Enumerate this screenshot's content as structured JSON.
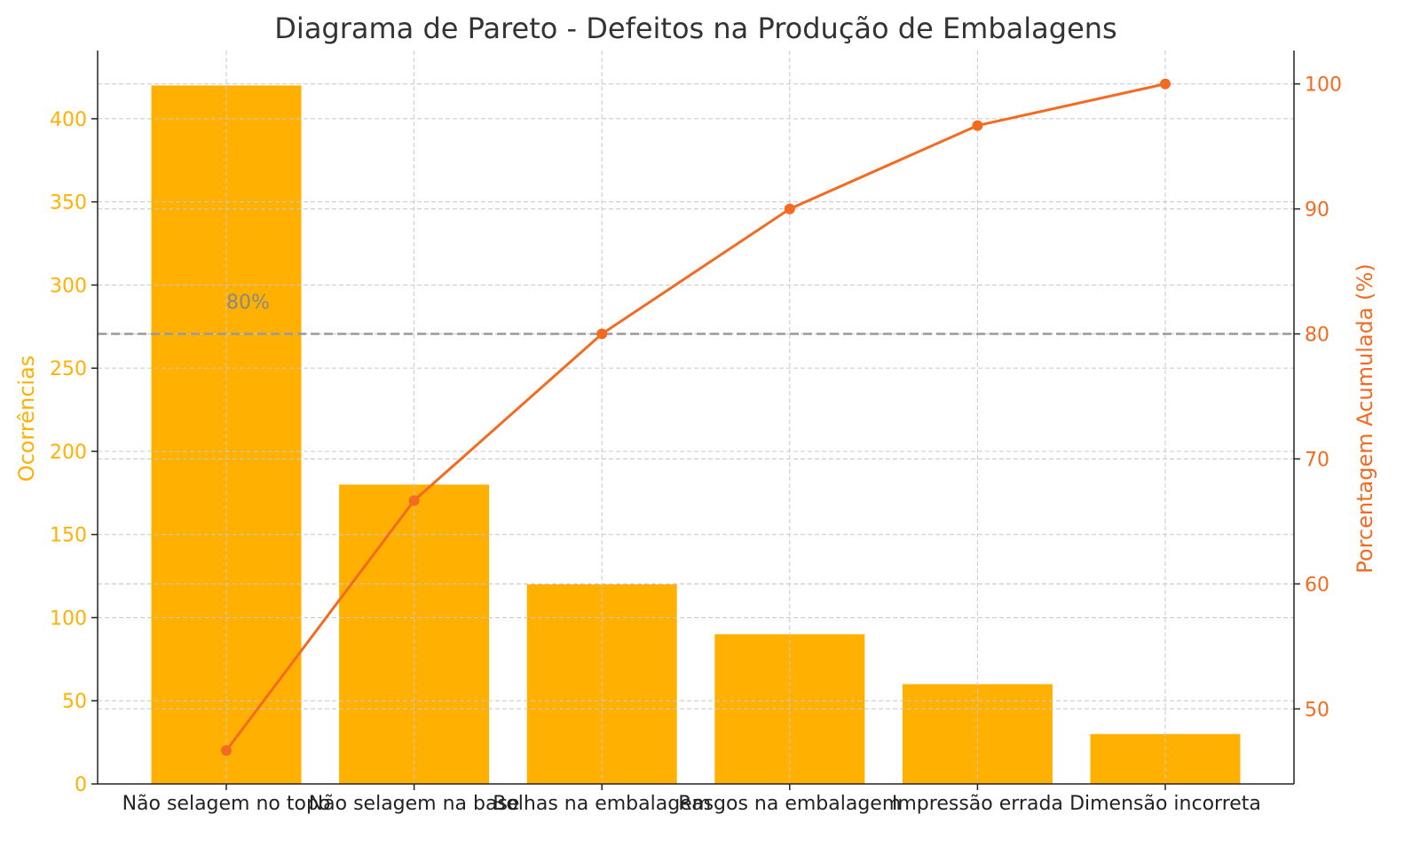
{
  "chart_data": {
    "type": "bar+line",
    "title": "Diagrama de Pareto - Defeitos na Produção de Embalagens",
    "categories": [
      "Não selagem no topo",
      "Não selagem na base",
      "Bolhas na embalagem",
      "Rasgos na embalagem",
      "Impressão errada",
      "Dimensão incorreta"
    ],
    "bar_series": {
      "name": "Ocorrências",
      "values": [
        420,
        180,
        120,
        90,
        60,
        30
      ],
      "color": "#FFB000"
    },
    "line_series": {
      "name": "Porcentagem Acumulada (%)",
      "values": [
        46.67,
        66.67,
        80.0,
        90.0,
        96.67,
        100.0
      ],
      "color": "#F26B21"
    },
    "ylabel_left": "Ocorrências",
    "ylabel_right": "Porcentagem Acumulada (%)",
    "ylim_left": [
      0,
      441
    ],
    "ylim_right": [
      44.0,
      102.67
    ],
    "yticks_left": [
      0,
      50,
      100,
      150,
      200,
      250,
      300,
      350,
      400
    ],
    "yticks_right": [
      50,
      60,
      70,
      80,
      90,
      100
    ],
    "threshold": {
      "value": 80,
      "label": "80%",
      "color": "#999999"
    },
    "grid": true
  }
}
